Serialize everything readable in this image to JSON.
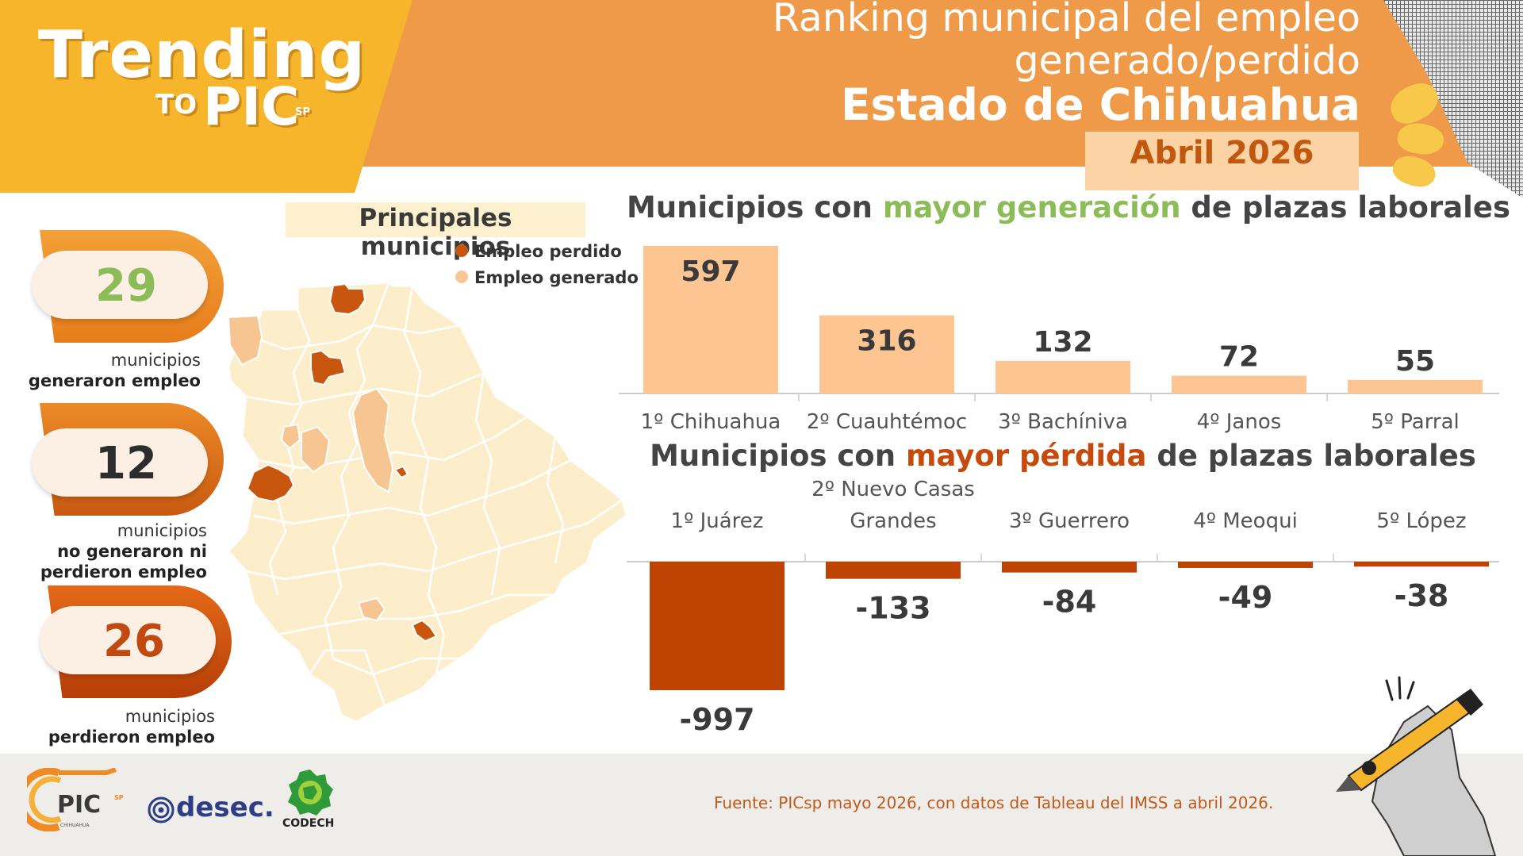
{
  "brand": {
    "trending": "Trending",
    "to": "TO",
    "pic": "PIC",
    "sp": "SP"
  },
  "header": {
    "title_line1": "Ranking municipal del empleo",
    "title_line2": "generado/perdido",
    "title_line3": "Estado de Chihuahua",
    "date": "Abril 2026"
  },
  "stats": [
    {
      "value": "29",
      "label_line1": "municipios",
      "label_bold": "generaron empleo",
      "color": "#8cbc57"
    },
    {
      "value": "12",
      "label_line1": "municipios",
      "label_bold1": "no  generaron ni",
      "label_bold2": "perdieron empleo",
      "color": "#2d2d2d"
    },
    {
      "value": "26",
      "label_line1": "municipios",
      "label_bold": "perdieron empleo",
      "color": "#c04a10"
    }
  ],
  "map": {
    "title": "Principales municipios",
    "legend": [
      {
        "label": "Empleo perdido",
        "color": "#c8560f"
      },
      {
        "label": "Empleo generado",
        "color": "#f9c796"
      }
    ],
    "colors": {
      "base": "#fdeecb",
      "lost": "#c8560f",
      "gained": "#f6c592",
      "border": "#ffffff"
    }
  },
  "chart_data": [
    {
      "type": "bar",
      "title_parts": [
        "Municipios con ",
        "mayor generación",
        " de plazas laborales"
      ],
      "categories": [
        "1º Chihuahua",
        "2º Cuauhtémoc",
        "3º Bachíniva",
        "4º Janos",
        "5º Parral"
      ],
      "values": [
        597,
        316,
        132,
        72,
        55
      ],
      "value_labels": [
        "597",
        "316",
        "132",
        "72",
        "55"
      ],
      "color": "#fdc592"
    },
    {
      "type": "bar",
      "title_parts": [
        "Municipios con ",
        "mayor pérdida",
        " de plazas laborales"
      ],
      "categories": [
        "1º Juárez",
        "2º Nuevo Casas Grandes",
        "3º Guerrero",
        "4º Meoqui",
        "5º López"
      ],
      "category_lines": [
        [
          "1º Juárez"
        ],
        [
          "2º Nuevo Casas",
          "Grandes"
        ],
        [
          "3º Guerrero"
        ],
        [
          "4º Meoqui"
        ],
        [
          "5º López"
        ]
      ],
      "values": [
        -997,
        -133,
        -84,
        -49,
        -38
      ],
      "value_labels": [
        "-997",
        "-133",
        "-84",
        "-49",
        "-38"
      ],
      "color": "#bf4303"
    }
  ],
  "footer": {
    "source": "Fuente: PICsp mayo 2026, con datos de Tableau del IMSS a abril 2026.",
    "logo_pic": "PIC",
    "logo_pic_sp": "SP",
    "logo_pic_sub": "CHIHUAHUA",
    "logo_desec": "desec.",
    "logo_codech": "CODECH"
  }
}
